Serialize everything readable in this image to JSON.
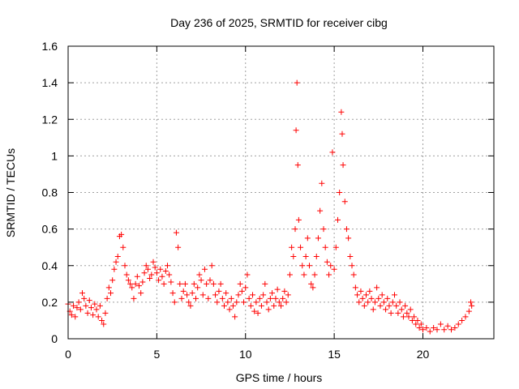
{
  "chart_data": {
    "type": "scatter",
    "title": "Day 236 of 2025, SRMTID for receiver cibg",
    "xlabel": "GPS time / hours",
    "ylabel": "SRMTID / TECUs",
    "xlim": [
      0,
      24
    ],
    "ylim": [
      0,
      1.6
    ],
    "xticks": [
      0,
      5,
      10,
      15,
      20
    ],
    "xtick_labels": [
      "0",
      "5",
      "10",
      "15",
      "20"
    ],
    "yticks": [
      0,
      0.2,
      0.4,
      0.6,
      0.8,
      1.0,
      1.2,
      1.4,
      1.6
    ],
    "ytick_labels": [
      "0",
      "0.2",
      "0.4",
      "0.6",
      "0.8",
      "1",
      "1.2",
      "1.4",
      "1.6"
    ],
    "grid": true,
    "marker": "+",
    "colors": {
      "points": "#ff0000",
      "grid": "#a0a0a0",
      "axes": "#000000"
    },
    "series": [
      {
        "name": "SRMTID",
        "points": [
          [
            0.0,
            0.19
          ],
          [
            0.1,
            0.15
          ],
          [
            0.2,
            0.13
          ],
          [
            0.3,
            0.18
          ],
          [
            0.4,
            0.12
          ],
          [
            0.5,
            0.17
          ],
          [
            0.6,
            0.2
          ],
          [
            0.7,
            0.16
          ],
          [
            0.8,
            0.25
          ],
          [
            0.9,
            0.22
          ],
          [
            1.0,
            0.18
          ],
          [
            1.1,
            0.14
          ],
          [
            1.2,
            0.21
          ],
          [
            1.3,
            0.17
          ],
          [
            1.4,
            0.13
          ],
          [
            1.5,
            0.19
          ],
          [
            1.6,
            0.16
          ],
          [
            1.7,
            0.12
          ],
          [
            1.8,
            0.18
          ],
          [
            1.9,
            0.1
          ],
          [
            2.0,
            0.08
          ],
          [
            2.1,
            0.14
          ],
          [
            2.2,
            0.22
          ],
          [
            2.3,
            0.28
          ],
          [
            2.4,
            0.25
          ],
          [
            2.5,
            0.32
          ],
          [
            2.6,
            0.38
          ],
          [
            2.7,
            0.42
          ],
          [
            2.8,
            0.45
          ],
          [
            2.9,
            0.56
          ],
          [
            3.0,
            0.57
          ],
          [
            3.1,
            0.5
          ],
          [
            3.2,
            0.4
          ],
          [
            3.3,
            0.35
          ],
          [
            3.4,
            0.32
          ],
          [
            3.5,
            0.3
          ],
          [
            3.6,
            0.28
          ],
          [
            3.7,
            0.22
          ],
          [
            3.8,
            0.3
          ],
          [
            3.9,
            0.34
          ],
          [
            4.0,
            0.29
          ],
          [
            4.1,
            0.25
          ],
          [
            4.2,
            0.31
          ],
          [
            4.3,
            0.36
          ],
          [
            4.4,
            0.4
          ],
          [
            4.5,
            0.38
          ],
          [
            4.6,
            0.33
          ],
          [
            4.7,
            0.35
          ],
          [
            4.8,
            0.42
          ],
          [
            4.9,
            0.39
          ],
          [
            5.0,
            0.36
          ],
          [
            5.1,
            0.32
          ],
          [
            5.2,
            0.38
          ],
          [
            5.3,
            0.34
          ],
          [
            5.4,
            0.3
          ],
          [
            5.5,
            0.37
          ],
          [
            5.6,
            0.4
          ],
          [
            5.7,
            0.35
          ],
          [
            5.8,
            0.31
          ],
          [
            5.9,
            0.25
          ],
          [
            6.0,
            0.2
          ],
          [
            6.1,
            0.58
          ],
          [
            6.2,
            0.5
          ],
          [
            6.3,
            0.3
          ],
          [
            6.4,
            0.22
          ],
          [
            6.5,
            0.26
          ],
          [
            6.6,
            0.3
          ],
          [
            6.7,
            0.24
          ],
          [
            6.8,
            0.2
          ],
          [
            6.9,
            0.18
          ],
          [
            7.0,
            0.25
          ],
          [
            7.1,
            0.3
          ],
          [
            7.2,
            0.22
          ],
          [
            7.3,
            0.28
          ],
          [
            7.4,
            0.35
          ],
          [
            7.5,
            0.32
          ],
          [
            7.6,
            0.24
          ],
          [
            7.7,
            0.38
          ],
          [
            7.8,
            0.3
          ],
          [
            7.9,
            0.22
          ],
          [
            8.0,
            0.32
          ],
          [
            8.1,
            0.4
          ],
          [
            8.2,
            0.3
          ],
          [
            8.3,
            0.24
          ],
          [
            8.4,
            0.2
          ],
          [
            8.5,
            0.26
          ],
          [
            8.6,
            0.3
          ],
          [
            8.7,
            0.22
          ],
          [
            8.8,
            0.18
          ],
          [
            8.9,
            0.25
          ],
          [
            9.0,
            0.2
          ],
          [
            9.1,
            0.16
          ],
          [
            9.2,
            0.22
          ],
          [
            9.3,
            0.18
          ],
          [
            9.4,
            0.12
          ],
          [
            9.5,
            0.2
          ],
          [
            9.6,
            0.24
          ],
          [
            9.7,
            0.3
          ],
          [
            9.8,
            0.26
          ],
          [
            9.9,
            0.2
          ],
          [
            10.0,
            0.28
          ],
          [
            10.1,
            0.35
          ],
          [
            10.2,
            0.22
          ],
          [
            10.3,
            0.18
          ],
          [
            10.4,
            0.24
          ],
          [
            10.5,
            0.15
          ],
          [
            10.6,
            0.2
          ],
          [
            10.7,
            0.14
          ],
          [
            10.8,
            0.22
          ],
          [
            10.9,
            0.18
          ],
          [
            11.0,
            0.24
          ],
          [
            11.1,
            0.3
          ],
          [
            11.2,
            0.2
          ],
          [
            11.3,
            0.16
          ],
          [
            11.4,
            0.22
          ],
          [
            11.5,
            0.25
          ],
          [
            11.6,
            0.18
          ],
          [
            11.7,
            0.22
          ],
          [
            11.8,
            0.27
          ],
          [
            11.9,
            0.2
          ],
          [
            12.0,
            0.18
          ],
          [
            12.1,
            0.22
          ],
          [
            12.2,
            0.26
          ],
          [
            12.3,
            0.2
          ],
          [
            12.4,
            0.24
          ],
          [
            12.5,
            0.35
          ],
          [
            12.6,
            0.5
          ],
          [
            12.7,
            0.45
          ],
          [
            12.8,
            0.6
          ],
          [
            12.85,
            1.14
          ],
          [
            12.9,
            1.4
          ],
          [
            12.95,
            0.95
          ],
          [
            13.0,
            0.65
          ],
          [
            13.1,
            0.5
          ],
          [
            13.2,
            0.4
          ],
          [
            13.3,
            0.35
          ],
          [
            13.4,
            0.45
          ],
          [
            13.5,
            0.55
          ],
          [
            13.6,
            0.4
          ],
          [
            13.7,
            0.3
          ],
          [
            13.8,
            0.28
          ],
          [
            13.9,
            0.35
          ],
          [
            14.0,
            0.45
          ],
          [
            14.1,
            0.55
          ],
          [
            14.2,
            0.7
          ],
          [
            14.3,
            0.85
          ],
          [
            14.4,
            0.6
          ],
          [
            14.5,
            0.5
          ],
          [
            14.6,
            0.42
          ],
          [
            14.7,
            0.35
          ],
          [
            14.8,
            0.4
          ],
          [
            14.9,
            1.02
          ],
          [
            15.0,
            0.38
          ],
          [
            15.1,
            0.5
          ],
          [
            15.2,
            0.65
          ],
          [
            15.3,
            0.8
          ],
          [
            15.4,
            1.24
          ],
          [
            15.45,
            1.12
          ],
          [
            15.5,
            0.95
          ],
          [
            15.6,
            0.75
          ],
          [
            15.7,
            0.6
          ],
          [
            15.8,
            0.55
          ],
          [
            15.9,
            0.45
          ],
          [
            16.0,
            0.4
          ],
          [
            16.1,
            0.35
          ],
          [
            16.2,
            0.28
          ],
          [
            16.3,
            0.24
          ],
          [
            16.4,
            0.2
          ],
          [
            16.5,
            0.26
          ],
          [
            16.6,
            0.22
          ],
          [
            16.7,
            0.18
          ],
          [
            16.8,
            0.24
          ],
          [
            16.9,
            0.2
          ],
          [
            17.0,
            0.26
          ],
          [
            17.1,
            0.22
          ],
          [
            17.2,
            0.16
          ],
          [
            17.3,
            0.2
          ],
          [
            17.4,
            0.28
          ],
          [
            17.5,
            0.22
          ],
          [
            17.6,
            0.18
          ],
          [
            17.7,
            0.24
          ],
          [
            17.8,
            0.2
          ],
          [
            17.9,
            0.16
          ],
          [
            18.0,
            0.22
          ],
          [
            18.1,
            0.18
          ],
          [
            18.2,
            0.14
          ],
          [
            18.3,
            0.2
          ],
          [
            18.4,
            0.24
          ],
          [
            18.5,
            0.18
          ],
          [
            18.6,
            0.14
          ],
          [
            18.7,
            0.2
          ],
          [
            18.8,
            0.16
          ],
          [
            18.9,
            0.12
          ],
          [
            19.0,
            0.18
          ],
          [
            19.1,
            0.14
          ],
          [
            19.2,
            0.12
          ],
          [
            19.3,
            0.16
          ],
          [
            19.4,
            0.1
          ],
          [
            19.5,
            0.12
          ],
          [
            19.6,
            0.08
          ],
          [
            19.7,
            0.1
          ],
          [
            19.8,
            0.06
          ],
          [
            19.9,
            0.08
          ],
          [
            20.0,
            0.05
          ],
          [
            20.2,
            0.06
          ],
          [
            20.4,
            0.04
          ],
          [
            20.6,
            0.06
          ],
          [
            20.8,
            0.05
          ],
          [
            21.0,
            0.08
          ],
          [
            21.2,
            0.05
          ],
          [
            21.4,
            0.07
          ],
          [
            21.6,
            0.05
          ],
          [
            21.8,
            0.06
          ],
          [
            22.0,
            0.08
          ],
          [
            22.2,
            0.1
          ],
          [
            22.4,
            0.12
          ],
          [
            22.6,
            0.15
          ],
          [
            22.7,
            0.2
          ],
          [
            22.75,
            0.18
          ]
        ]
      }
    ]
  }
}
